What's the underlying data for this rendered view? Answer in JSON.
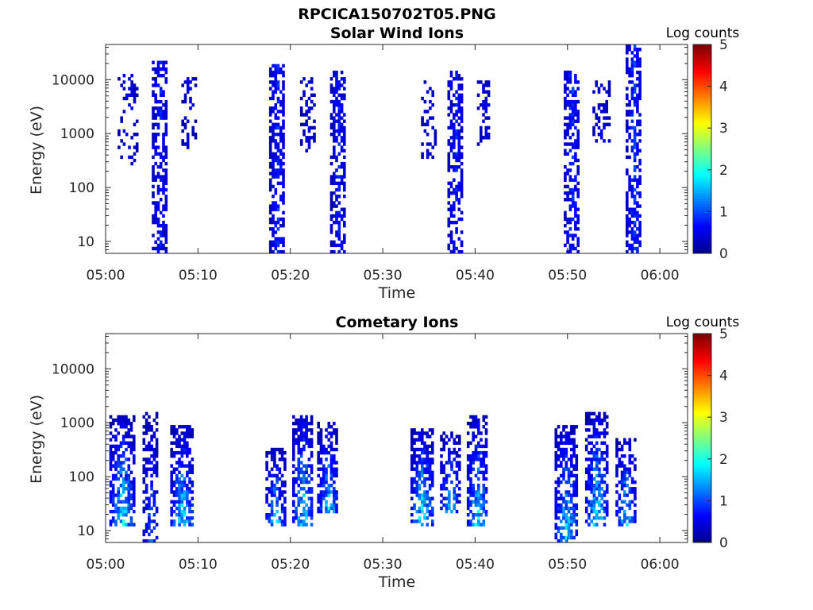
{
  "figure_title": "RPCICA150702T05.PNG",
  "colors": {
    "colormap": [
      "#00008f",
      "#0000ff",
      "#0080ff",
      "#00ffff",
      "#80ff80",
      "#ffff00",
      "#ff8000",
      "#ff0000",
      "#800000"
    ]
  },
  "chart_data": [
    {
      "type": "heatmap",
      "title": "Solar Wind Ions",
      "xlabel": "Time",
      "ylabel": "Energy (eV)",
      "x_ticks": [
        "05:00",
        "05:10",
        "05:20",
        "05:30",
        "05:40",
        "05:50",
        "06:00"
      ],
      "x_range_minutes": [
        0,
        63
      ],
      "y_scale": "log",
      "y_ticks": [
        "10",
        "100",
        "1000",
        "10000"
      ],
      "y_range": [
        6,
        45000
      ],
      "colorbar": {
        "label": "Log counts",
        "range": [
          0,
          5
        ],
        "ticks": [
          "0",
          "1",
          "2",
          "3",
          "4",
          "5"
        ]
      },
      "bursts": [
        {
          "center_min": 5.8,
          "width_min": 1.6,
          "emin": 6,
          "emax": 20000,
          "peak": 0.9,
          "density": 0.55
        },
        {
          "center_min": 2.4,
          "width_min": 2.2,
          "emin": 250,
          "emax": 12000,
          "peak": 0.6,
          "density": 0.22
        },
        {
          "center_min": 8.9,
          "width_min": 1.4,
          "emin": 500,
          "emax": 11000,
          "peak": 0.6,
          "density": 0.3
        },
        {
          "center_min": 18.5,
          "width_min": 1.6,
          "emin": 6,
          "emax": 18000,
          "peak": 1.0,
          "density": 0.6
        },
        {
          "center_min": 21.8,
          "width_min": 1.5,
          "emin": 400,
          "emax": 10000,
          "peak": 0.6,
          "density": 0.35
        },
        {
          "center_min": 25.1,
          "width_min": 1.6,
          "emin": 6,
          "emax": 13000,
          "peak": 0.9,
          "density": 0.55
        },
        {
          "center_min": 34.9,
          "width_min": 1.5,
          "emin": 300,
          "emax": 9000,
          "peak": 0.6,
          "density": 0.3
        },
        {
          "center_min": 37.8,
          "width_min": 1.6,
          "emin": 6,
          "emax": 14000,
          "peak": 0.9,
          "density": 0.55
        },
        {
          "center_min": 40.9,
          "width_min": 1.4,
          "emin": 500,
          "emax": 9000,
          "peak": 0.6,
          "density": 0.35
        },
        {
          "center_min": 50.4,
          "width_min": 1.6,
          "emin": 6,
          "emax": 14000,
          "peak": 1.0,
          "density": 0.55
        },
        {
          "center_min": 53.6,
          "width_min": 1.8,
          "emin": 600,
          "emax": 9000,
          "peak": 0.6,
          "density": 0.3
        },
        {
          "center_min": 57.1,
          "width_min": 1.6,
          "emin": 6,
          "emax": 40000,
          "peak": 1.1,
          "density": 0.55
        }
      ]
    },
    {
      "type": "heatmap",
      "title": "Cometary Ions",
      "xlabel": "Time",
      "ylabel": "Energy (eV)",
      "x_ticks": [
        "05:00",
        "05:10",
        "05:20",
        "05:30",
        "05:40",
        "05:50",
        "06:00"
      ],
      "x_range_minutes": [
        0,
        63
      ],
      "y_scale": "log",
      "y_ticks": [
        "10",
        "100",
        "1000",
        "10000"
      ],
      "y_range": [
        6,
        45000
      ],
      "colorbar": {
        "label": "Log counts",
        "range": [
          0,
          5
        ],
        "ticks": [
          "0",
          "1",
          "2",
          "3",
          "4",
          "5"
        ]
      },
      "bursts": [
        {
          "center_min": 1.7,
          "width_min": 2.6,
          "emin": 12,
          "emax": 1200,
          "peak": 2.4,
          "density": 0.6
        },
        {
          "center_min": 4.8,
          "width_min": 1.6,
          "emin": 6,
          "emax": 1500,
          "peak": 1.5,
          "density": 0.5
        },
        {
          "center_min": 8.2,
          "width_min": 2.4,
          "emin": 12,
          "emax": 800,
          "peak": 2.3,
          "density": 0.6
        },
        {
          "center_min": 18.3,
          "width_min": 2.0,
          "emin": 12,
          "emax": 300,
          "peak": 2.2,
          "density": 0.55
        },
        {
          "center_min": 21.3,
          "width_min": 2.2,
          "emin": 12,
          "emax": 1300,
          "peak": 2.4,
          "density": 0.6
        },
        {
          "center_min": 24.0,
          "width_min": 2.2,
          "emin": 20,
          "emax": 1000,
          "peak": 2.2,
          "density": 0.55
        },
        {
          "center_min": 34.2,
          "width_min": 2.4,
          "emin": 12,
          "emax": 700,
          "peak": 2.6,
          "density": 0.6
        },
        {
          "center_min": 37.2,
          "width_min": 2.0,
          "emin": 20,
          "emax": 600,
          "peak": 2.2,
          "density": 0.55
        },
        {
          "center_min": 40.2,
          "width_min": 2.2,
          "emin": 12,
          "emax": 1300,
          "peak": 2.3,
          "density": 0.6
        },
        {
          "center_min": 49.8,
          "width_min": 2.4,
          "emin": 6,
          "emax": 800,
          "peak": 2.3,
          "density": 0.6
        },
        {
          "center_min": 53.1,
          "width_min": 2.4,
          "emin": 12,
          "emax": 1500,
          "peak": 2.4,
          "density": 0.6
        },
        {
          "center_min": 56.2,
          "width_min": 2.0,
          "emin": 12,
          "emax": 500,
          "peak": 2.2,
          "density": 0.55
        }
      ]
    }
  ]
}
